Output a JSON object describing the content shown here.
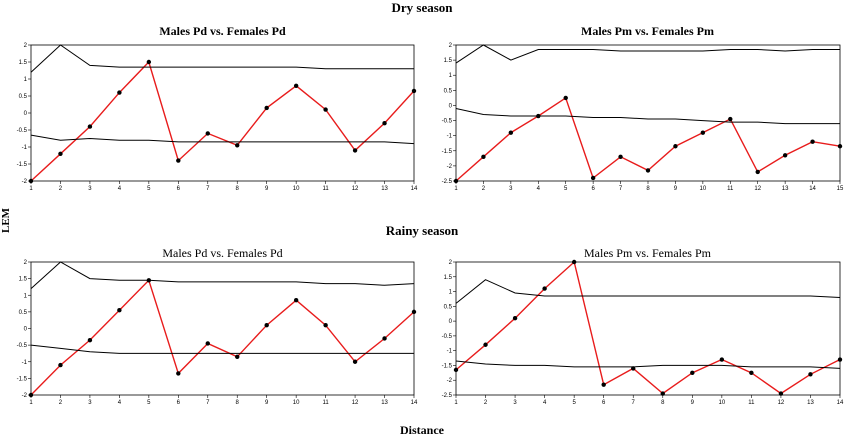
{
  "figure": {
    "dry_title": "Dry season",
    "rainy_title": "Rainy season",
    "ylabel": "LEM",
    "xlabel": "Distance"
  },
  "colors": {
    "line": "#e81c1c",
    "envelope": "#000000",
    "point": "#000000"
  },
  "chart_data": [
    {
      "type": "line",
      "title": "Males Pd vs. Females Pd",
      "title_bold": true,
      "x": [
        1,
        2,
        3,
        4,
        5,
        6,
        7,
        8,
        9,
        10,
        11,
        12,
        13,
        14
      ],
      "xticks": [
        "1",
        "2",
        "3",
        "4",
        "5",
        "6",
        "7",
        "8",
        "9",
        "10",
        "11",
        "12",
        "13",
        "14"
      ],
      "yticks": [
        "2",
        "1.5",
        "1",
        "0.5",
        "0",
        "-0.5",
        "-1",
        "-1.5",
        "-2"
      ],
      "ylim": [
        -2,
        2
      ],
      "series": [
        {
          "role": "lem",
          "values": [
            -2.0,
            -1.2,
            -0.4,
            0.6,
            1.5,
            -1.4,
            -0.6,
            -0.95,
            0.15,
            0.8,
            0.1,
            -1.1,
            -0.3,
            0.65
          ]
        },
        {
          "role": "upper",
          "values": [
            1.2,
            2.0,
            1.4,
            1.35,
            1.35,
            1.35,
            1.35,
            1.35,
            1.35,
            1.35,
            1.3,
            1.3,
            1.3,
            1.3
          ]
        },
        {
          "role": "lower",
          "values": [
            -0.65,
            -0.8,
            -0.75,
            -0.8,
            -0.8,
            -0.85,
            -0.85,
            -0.85,
            -0.85,
            -0.85,
            -0.85,
            -0.85,
            -0.85,
            -0.9
          ]
        }
      ]
    },
    {
      "type": "line",
      "title": "Males Pm vs. Females Pm",
      "title_bold": true,
      "x": [
        1,
        2,
        3,
        4,
        5,
        6,
        7,
        8,
        9,
        10,
        11,
        12,
        13,
        14,
        15
      ],
      "xticks": [
        "1",
        "2",
        "3",
        "4",
        "5",
        "6",
        "7",
        "8",
        "9",
        "10",
        "11",
        "12",
        "13",
        "14",
        "15"
      ],
      "yticks": [
        "2",
        "1.5",
        "1",
        "0.5",
        "0",
        "-0.5",
        "-1",
        "-1.5",
        "-2",
        "-2.5"
      ],
      "ylim": [
        -2.5,
        2
      ],
      "series": [
        {
          "role": "lem",
          "values": [
            -2.5,
            -1.7,
            -0.9,
            -0.35,
            0.25,
            -2.4,
            -1.7,
            -2.15,
            -1.35,
            -0.9,
            -0.45,
            -2.2,
            -1.65,
            -1.2,
            -1.35
          ]
        },
        {
          "role": "upper",
          "values": [
            1.4,
            2.0,
            1.5,
            1.85,
            1.85,
            1.85,
            1.8,
            1.8,
            1.8,
            1.8,
            1.85,
            1.85,
            1.8,
            1.85,
            1.85
          ]
        },
        {
          "role": "lower",
          "values": [
            -0.1,
            -0.3,
            -0.35,
            -0.35,
            -0.35,
            -0.4,
            -0.4,
            -0.45,
            -0.45,
            -0.5,
            -0.55,
            -0.55,
            -0.6,
            -0.6,
            -0.6
          ]
        }
      ]
    },
    {
      "type": "line",
      "title": "Males Pd vs. Females Pd",
      "title_bold": false,
      "x": [
        1,
        2,
        3,
        4,
        5,
        6,
        7,
        8,
        9,
        10,
        11,
        12,
        13,
        14
      ],
      "xticks": [
        "1",
        "2",
        "3",
        "4",
        "5",
        "6",
        "7",
        "8",
        "9",
        "10",
        "11",
        "12",
        "13",
        "14"
      ],
      "yticks": [
        "2",
        "1.5",
        "1",
        "0.5",
        "0",
        "-0.5",
        "-1",
        "-1.5",
        "-2"
      ],
      "ylim": [
        -2,
        2
      ],
      "series": [
        {
          "role": "lem",
          "values": [
            -2.0,
            -1.1,
            -0.35,
            0.55,
            1.45,
            -1.35,
            -0.45,
            -0.85,
            0.1,
            0.85,
            0.1,
            -1.0,
            -0.3,
            0.5
          ]
        },
        {
          "role": "upper",
          "values": [
            1.2,
            2.0,
            1.5,
            1.45,
            1.45,
            1.4,
            1.4,
            1.4,
            1.4,
            1.4,
            1.35,
            1.35,
            1.3,
            1.35
          ]
        },
        {
          "role": "lower",
          "values": [
            -0.5,
            -0.6,
            -0.7,
            -0.75,
            -0.75,
            -0.75,
            -0.75,
            -0.75,
            -0.75,
            -0.75,
            -0.75,
            -0.75,
            -0.75,
            -0.75
          ]
        }
      ]
    },
    {
      "type": "line",
      "title": "Males Pm vs. Females Pm",
      "title_bold": false,
      "x": [
        1,
        2,
        3,
        4,
        5,
        6,
        7,
        8,
        9,
        10,
        11,
        12,
        13,
        14
      ],
      "xticks": [
        "1",
        "2",
        "3",
        "4",
        "5",
        "6",
        "7",
        "8",
        "9",
        "10",
        "11",
        "12",
        "13",
        "14"
      ],
      "yticks": [
        "2",
        "1.5",
        "1",
        "0.5",
        "0",
        "-0.5",
        "-1",
        "-1.5",
        "-2",
        "-2.5"
      ],
      "ylim": [
        -2.5,
        2
      ],
      "series": [
        {
          "role": "lem",
          "values": [
            -1.65,
            -0.8,
            0.1,
            1.1,
            2.0,
            -2.15,
            -1.6,
            -2.45,
            -1.75,
            -1.3,
            -1.75,
            -2.45,
            -1.8,
            -1.3
          ]
        },
        {
          "role": "upper",
          "values": [
            0.6,
            1.4,
            0.95,
            0.85,
            0.85,
            0.85,
            0.85,
            0.85,
            0.85,
            0.85,
            0.85,
            0.85,
            0.85,
            0.8
          ]
        },
        {
          "role": "lower",
          "values": [
            -1.35,
            -1.45,
            -1.5,
            -1.5,
            -1.55,
            -1.55,
            -1.55,
            -1.5,
            -1.5,
            -1.5,
            -1.55,
            -1.55,
            -1.55,
            -1.6
          ]
        }
      ]
    }
  ]
}
